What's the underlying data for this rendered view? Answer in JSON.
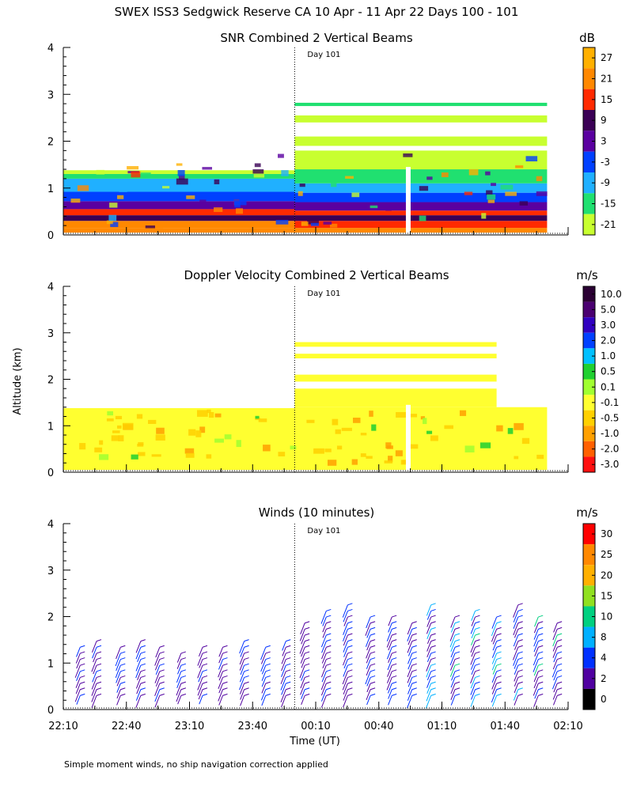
{
  "figure": {
    "title": "SWEX ISS3 Sedgwick Reserve CA  10 Apr - 11 Apr 22 Days 100 - 101",
    "xlabel": "Time (UT)",
    "ylabel": "Altitude (km)",
    "footnote": "Simple moment winds, no ship navigation correction applied",
    "day_marker": "Day 101",
    "x_ticks": [
      "22:10",
      "22:40",
      "23:10",
      "23:40",
      "00:10",
      "00:40",
      "01:10",
      "01:40",
      "02:10"
    ],
    "y_ticks": [
      "0",
      "1",
      "2",
      "3",
      "4"
    ]
  },
  "chart_data": [
    {
      "type": "heatmap",
      "title": "SNR Combined 2 Vertical Beams",
      "units": "dB",
      "colorbar_labels": [
        "27",
        "21",
        "15",
        "9",
        "3",
        "-3",
        "-9",
        "-15",
        "-21"
      ],
      "colorbar_colors": [
        "#ffb000",
        "#ff8800",
        "#ff2a00",
        "#3a0055",
        "#5a00a0",
        "#0040ff",
        "#20b0ff",
        "#20e070",
        "#c8ff30"
      ],
      "x_range_hours": [
        22.1667,
        26.1667
      ],
      "y_range_km": [
        0,
        4
      ],
      "day_boundary_hours": 24.0,
      "profile_before": [
        {
          "z0": 0.05,
          "z1": 0.15,
          "color": "#ff8800"
        },
        {
          "z0": 0.15,
          "z1": 0.3,
          "color": "#ff8800"
        },
        {
          "z0": 0.3,
          "z1": 0.42,
          "color": "#3a0055"
        },
        {
          "z0": 0.42,
          "z1": 0.55,
          "color": "#ff2a00"
        },
        {
          "z0": 0.55,
          "z1": 0.72,
          "color": "#5a00a0"
        },
        {
          "z0": 0.72,
          "z1": 0.92,
          "color": "#0040ff"
        },
        {
          "z0": 0.92,
          "z1": 1.2,
          "color": "#20b0ff"
        },
        {
          "z0": 1.2,
          "z1": 1.3,
          "color": "#20e070"
        },
        {
          "z0": 1.3,
          "z1": 1.38,
          "color": "#c8ff30"
        }
      ],
      "profile_after": [
        {
          "z0": 0.05,
          "z1": 0.15,
          "color": "#ff8800"
        },
        {
          "z0": 0.15,
          "z1": 0.3,
          "color": "#ff2a00"
        },
        {
          "z0": 0.3,
          "z1": 0.42,
          "color": "#3a0055"
        },
        {
          "z0": 0.42,
          "z1": 0.52,
          "color": "#ff2a00"
        },
        {
          "z0": 0.52,
          "z1": 0.7,
          "color": "#5a00a0"
        },
        {
          "z0": 0.7,
          "z1": 0.9,
          "color": "#0040ff"
        },
        {
          "z0": 0.9,
          "z1": 1.1,
          "color": "#20b0ff"
        },
        {
          "z0": 1.1,
          "z1": 1.4,
          "color": "#20e070"
        },
        {
          "z0": 1.4,
          "z1": 1.8,
          "color": "#c8ff30"
        },
        {
          "z0": 1.9,
          "z1": 2.1,
          "color": "#c8ff30"
        },
        {
          "z0": 2.4,
          "z1": 2.55,
          "color": "#c8ff30"
        },
        {
          "z0": 2.75,
          "z1": 2.82,
          "color": "#20e070"
        }
      ],
      "gaps_hours": [
        24.9,
        26.02
      ]
    },
    {
      "type": "heatmap",
      "title": "Doppler Velocity Combined 2 Vertical Beams",
      "units": "m/s",
      "colorbar_labels": [
        "10.0",
        "5.0",
        "3.0",
        "2.0",
        "1.0",
        "0.5",
        "0.1",
        "-0.1",
        "-0.5",
        "-1.0",
        "-2.0",
        "-3.0"
      ],
      "colorbar_colors": [
        "#2a0033",
        "#4a0070",
        "#3000c0",
        "#0040ff",
        "#00c0ff",
        "#20d030",
        "#a0ff30",
        "#ffff30",
        "#ffd000",
        "#ffa000",
        "#ff6000",
        "#ff1010"
      ],
      "x_range_hours": [
        22.1667,
        26.1667
      ],
      "y_range_km": [
        0,
        4
      ],
      "day_boundary_hours": 24.0,
      "fill_before": {
        "z0": 0.05,
        "z1": 1.38,
        "color": "#ffff30"
      },
      "fill_after": {
        "z0": 0.05,
        "z1": 1.4,
        "color": "#ffff30"
      },
      "layers_after": [
        {
          "z0": 1.4,
          "z1": 1.8,
          "color": "#ffff30"
        },
        {
          "z0": 1.95,
          "z1": 2.1,
          "color": "#ffff30"
        },
        {
          "z0": 2.45,
          "z1": 2.55,
          "color": "#ffff30"
        },
        {
          "z0": 2.7,
          "z1": 2.8,
          "color": "#ffff30"
        }
      ],
      "gaps_hours": [
        24.9,
        26.02
      ]
    },
    {
      "type": "scatter",
      "title": "Winds (10 minutes)",
      "units": "m/s",
      "colorbar_labels": [
        "30",
        "25",
        "20",
        "15",
        "10",
        "8",
        "4",
        "2",
        "0"
      ],
      "colorbar_colors": [
        "#ff0000",
        "#ff8800",
        "#ffb000",
        "#90e020",
        "#00d080",
        "#00b0ff",
        "#0030ff",
        "#5000a0",
        "#000000"
      ],
      "x_range_hours": [
        22.1667,
        26.1667
      ],
      "y_range_km": [
        0,
        4
      ],
      "day_boundary_hours": 24.0,
      "wind_profiles_hours": [
        22.3,
        22.43,
        22.62,
        22.78,
        22.93,
        23.1,
        23.27,
        23.43,
        23.6,
        23.77,
        23.93,
        24.08,
        24.25,
        24.42,
        24.6,
        24.77,
        24.93,
        25.08,
        25.27,
        25.43,
        25.6,
        25.77,
        25.93,
        26.08
      ]
    }
  ]
}
